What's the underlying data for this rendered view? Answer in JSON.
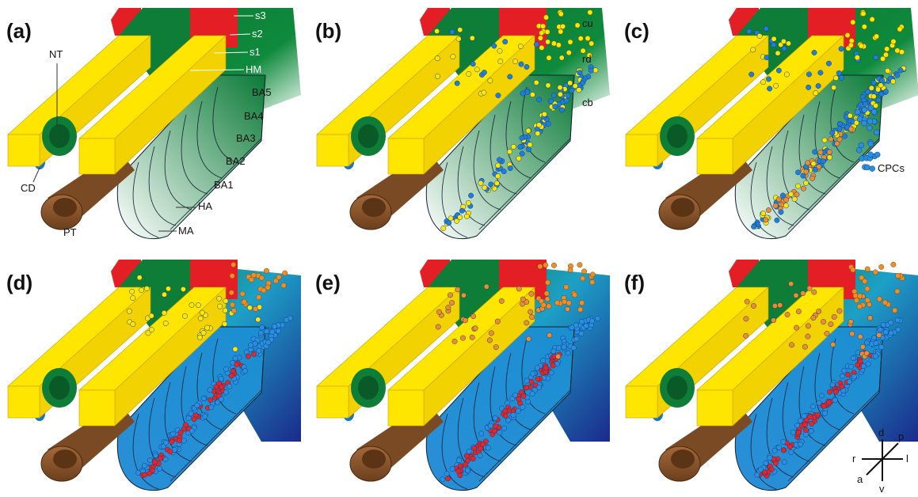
{
  "panels": [
    {
      "label": "(a)",
      "annotations": [
        "NT",
        "s3",
        "s2",
        "s1",
        "HM",
        "BA5",
        "BA4",
        "BA3",
        "BA2",
        "BA1",
        "HA",
        "MA",
        "CD",
        "PT"
      ]
    },
    {
      "label": "(b)",
      "annotations": [
        "cu",
        "rd",
        "cb"
      ]
    },
    {
      "label": "(c)",
      "annotations": [
        "CPCs"
      ]
    },
    {
      "label": "(d)",
      "annotations": []
    },
    {
      "label": "(e)",
      "annotations": []
    },
    {
      "label": "(f)",
      "annotations": []
    }
  ],
  "compass": {
    "d": "d",
    "p": "p",
    "r": "r",
    "l": "l",
    "a": "a",
    "v": "v"
  }
}
